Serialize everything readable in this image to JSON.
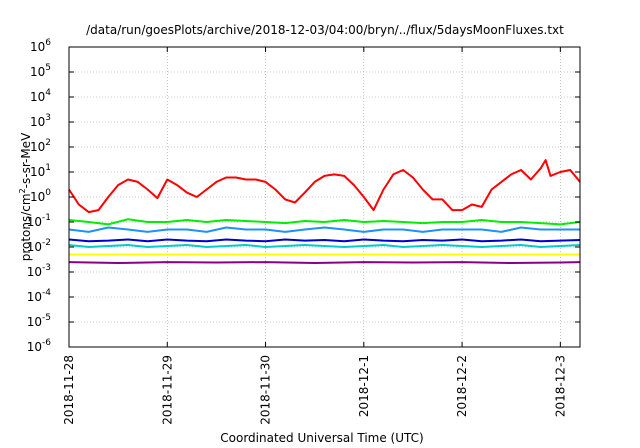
{
  "chart_data": {
    "type": "line",
    "title": "/data/run/goesPlots/archive/2018-12-03/04:00/bryn/../flux/5daysMoonFluxes.txt",
    "xlabel": "Coordinated Universal Time (UTC)",
    "ylabel": {
      "base": "protons/cm",
      "sup": "2",
      "rest": "-s-sr-MeV"
    },
    "yscale": "log",
    "ylim_exp": [
      -6,
      6
    ],
    "yticks": [
      {
        "exp": -6,
        "label": "10",
        "sup": "-6"
      },
      {
        "exp": -5,
        "label": "10",
        "sup": "-5"
      },
      {
        "exp": -4,
        "label": "10",
        "sup": "-4"
      },
      {
        "exp": -3,
        "label": "10",
        "sup": "-3"
      },
      {
        "exp": -2,
        "label": "10",
        "sup": "-2"
      },
      {
        "exp": -1,
        "label": "10",
        "sup": "-1"
      },
      {
        "exp": 0,
        "label": "10",
        "sup": "0"
      },
      {
        "exp": 1,
        "label": "10",
        "sup": "1"
      },
      {
        "exp": 2,
        "label": "10",
        "sup": "2"
      },
      {
        "exp": 3,
        "label": "10",
        "sup": "3"
      },
      {
        "exp": 4,
        "label": "10",
        "sup": "4"
      },
      {
        "exp": 5,
        "label": "10",
        "sup": "5"
      },
      {
        "exp": 6,
        "label": "10",
        "sup": "6"
      }
    ],
    "xlim_days": [
      0,
      5.2
    ],
    "xticks": [
      {
        "day": 0,
        "label": "2018-11-28"
      },
      {
        "day": 1,
        "label": "2018-11-29"
      },
      {
        "day": 2,
        "label": "2018-11-30"
      },
      {
        "day": 3,
        "label": "2018-12-1"
      },
      {
        "day": 4,
        "label": "2018-12-2"
      },
      {
        "day": 5,
        "label": "2018-12-3"
      }
    ],
    "grid": true,
    "series": [
      {
        "color": "#ff0000",
        "x": [
          0,
          0.1,
          0.2,
          0.3,
          0.4,
          0.5,
          0.6,
          0.7,
          0.8,
          0.9,
          1.0,
          1.1,
          1.2,
          1.3,
          1.4,
          1.5,
          1.6,
          1.7,
          1.8,
          1.9,
          2.0,
          2.1,
          2.2,
          2.3,
          2.4,
          2.5,
          2.6,
          2.7,
          2.8,
          2.9,
          3.0,
          3.1,
          3.2,
          3.3,
          3.4,
          3.5,
          3.6,
          3.7,
          3.8,
          3.9,
          4.0,
          4.1,
          4.2,
          4.3,
          4.4,
          4.5,
          4.6,
          4.7,
          4.8,
          4.85,
          4.9,
          5.0,
          5.1,
          5.2
        ],
        "values": [
          2,
          0.5,
          0.25,
          0.3,
          1.0,
          3.0,
          5.0,
          4.0,
          2.0,
          0.9,
          5.0,
          3.0,
          1.5,
          1.0,
          2.0,
          4.0,
          6.0,
          6.0,
          5.0,
          5.0,
          4.0,
          2.0,
          0.8,
          0.6,
          1.5,
          4.0,
          7.0,
          8.0,
          7.0,
          3.0,
          1.0,
          0.3,
          2.0,
          8.0,
          12.0,
          6.0,
          2.0,
          0.8,
          0.8,
          0.3,
          0.3,
          0.5,
          0.4,
          2.0,
          4.0,
          8.0,
          12.0,
          5.0,
          14.0,
          30.0,
          7.0,
          10.0,
          12.0,
          4.0
        ]
      },
      {
        "color": "#00ee00",
        "x": [
          0,
          0.2,
          0.4,
          0.6,
          0.8,
          1.0,
          1.2,
          1.4,
          1.6,
          1.8,
          2.0,
          2.2,
          2.4,
          2.6,
          2.8,
          3.0,
          3.2,
          3.4,
          3.6,
          3.8,
          4.0,
          4.2,
          4.4,
          4.6,
          4.8,
          5.0,
          5.2
        ],
        "values": [
          0.12,
          0.1,
          0.08,
          0.13,
          0.1,
          0.1,
          0.12,
          0.1,
          0.12,
          0.11,
          0.1,
          0.09,
          0.11,
          0.1,
          0.12,
          0.1,
          0.11,
          0.1,
          0.09,
          0.1,
          0.1,
          0.12,
          0.1,
          0.1,
          0.09,
          0.08,
          0.1
        ]
      },
      {
        "color": "#1e90ff",
        "x": [
          0,
          0.2,
          0.4,
          0.6,
          0.8,
          1.0,
          1.2,
          1.4,
          1.6,
          1.8,
          2.0,
          2.2,
          2.4,
          2.6,
          2.8,
          3.0,
          3.2,
          3.4,
          3.6,
          3.8,
          4.0,
          4.2,
          4.4,
          4.6,
          4.8,
          5.0,
          5.2
        ],
        "values": [
          0.05,
          0.04,
          0.06,
          0.05,
          0.04,
          0.05,
          0.05,
          0.04,
          0.06,
          0.05,
          0.05,
          0.04,
          0.05,
          0.06,
          0.05,
          0.04,
          0.05,
          0.05,
          0.04,
          0.05,
          0.05,
          0.05,
          0.04,
          0.06,
          0.05,
          0.05,
          0.05
        ]
      },
      {
        "color": "#00cccc",
        "x": [
          0,
          0.2,
          0.4,
          0.6,
          0.8,
          1.0,
          1.2,
          1.4,
          1.6,
          1.8,
          2.0,
          2.2,
          2.4,
          2.6,
          2.8,
          3.0,
          3.2,
          3.4,
          3.6,
          3.8,
          4.0,
          4.2,
          4.4,
          4.6,
          4.8,
          5.0,
          5.2
        ],
        "values": [
          0.012,
          0.01,
          0.011,
          0.012,
          0.01,
          0.011,
          0.012,
          0.01,
          0.011,
          0.012,
          0.01,
          0.011,
          0.012,
          0.011,
          0.01,
          0.011,
          0.012,
          0.01,
          0.011,
          0.012,
          0.011,
          0.01,
          0.011,
          0.012,
          0.01,
          0.011,
          0.012
        ]
      },
      {
        "color": "#0000cc",
        "x": [
          0,
          0.2,
          0.4,
          0.6,
          0.8,
          1.0,
          1.2,
          1.4,
          1.6,
          1.8,
          2.0,
          2.2,
          2.4,
          2.6,
          2.8,
          3.0,
          3.2,
          3.4,
          3.6,
          3.8,
          4.0,
          4.2,
          4.4,
          4.6,
          4.8,
          5.0,
          5.2
        ],
        "values": [
          0.02,
          0.017,
          0.018,
          0.02,
          0.017,
          0.02,
          0.018,
          0.017,
          0.02,
          0.018,
          0.017,
          0.02,
          0.018,
          0.019,
          0.017,
          0.02,
          0.018,
          0.017,
          0.019,
          0.018,
          0.02,
          0.017,
          0.018,
          0.02,
          0.017,
          0.018,
          0.019
        ]
      },
      {
        "color": "#ffff00",
        "x": [
          0,
          0.5,
          1.0,
          1.5,
          2.0,
          2.5,
          3.0,
          3.5,
          4.0,
          4.5,
          5.0,
          5.2
        ],
        "values": [
          0.005,
          0.005,
          0.005,
          0.005,
          0.005,
          0.005,
          0.005,
          0.005,
          0.005,
          0.005,
          0.005,
          0.005
        ]
      },
      {
        "color": "#880088",
        "x": [
          0,
          0.5,
          1.0,
          1.5,
          2.0,
          2.5,
          3.0,
          3.5,
          4.0,
          4.5,
          5.0,
          5.2
        ],
        "values": [
          0.0025,
          0.0023,
          0.0025,
          0.0024,
          0.0025,
          0.0023,
          0.0025,
          0.0024,
          0.0025,
          0.0023,
          0.0024,
          0.0025
        ]
      }
    ]
  }
}
